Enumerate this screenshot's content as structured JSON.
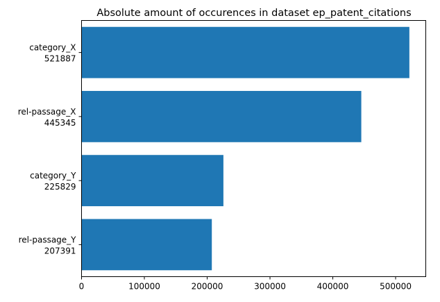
{
  "chart_data": {
    "type": "bar",
    "orientation": "horizontal",
    "title": "Absolute amount of occurences in dataset ep_patent_citations",
    "xlabel": "",
    "ylabel": "",
    "categories": [
      "category_X",
      "rel-passage_X",
      "category_Y",
      "rel-passage_Y"
    ],
    "category_labels": [
      [
        "category_X",
        "521887"
      ],
      [
        "rel-passage_X",
        "445345"
      ],
      [
        "category_Y",
        "225829"
      ],
      [
        "rel-passage_Y",
        "207391"
      ]
    ],
    "values": [
      521887,
      445345,
      225829,
      207391
    ],
    "xlim": [
      0,
      548000
    ],
    "xticks": [
      0,
      100000,
      200000,
      300000,
      400000,
      500000
    ],
    "xtick_labels": [
      "0",
      "100000",
      "200000",
      "300000",
      "400000",
      "500000"
    ],
    "bar_color": "#1f77b4",
    "grid": false
  }
}
